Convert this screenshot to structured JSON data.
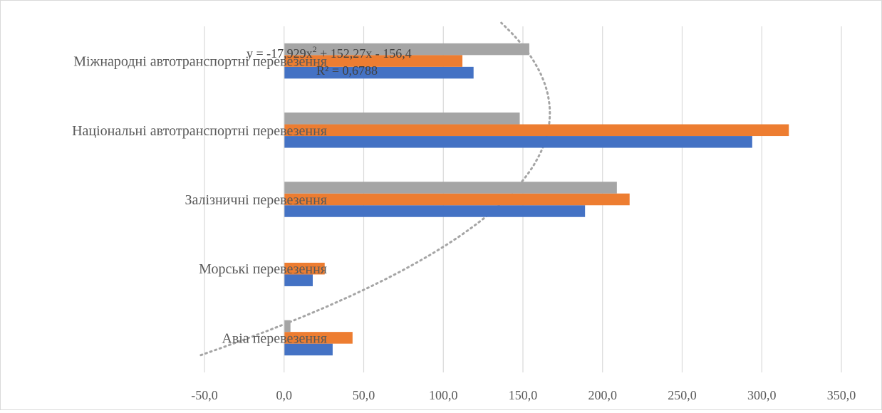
{
  "chart_data": {
    "type": "bar",
    "orientation": "horizontal",
    "categories": [
      "Авіа перевезення",
      "Морські перевезення",
      "Залізничні перевезення",
      "Національні  автотранспортні перевезення",
      "Міжнародні автотранспортні перевезення"
    ],
    "series": [
      {
        "values": [
          30.5,
          18,
          189,
          294,
          119
        ],
        "color": "#4472c4"
      },
      {
        "values": [
          43,
          25.5,
          217,
          317,
          112
        ],
        "color": "#ed7d31"
      },
      {
        "values": [
          4,
          0,
          209,
          148,
          154
        ],
        "color": "#a5a5a5"
      }
    ],
    "xlim": [
      -50,
      350
    ],
    "x_ticks": [
      "-50,0",
      "0,0",
      "50,0",
      "100,0",
      "150,0",
      "200,0",
      "250,0",
      "300,0",
      "350,0"
    ],
    "x_tick_values": [
      -50,
      0,
      50,
      100,
      150,
      200,
      250,
      300,
      350
    ],
    "grid": true,
    "trendline": {
      "type": "polynomial",
      "order": 2,
      "coefficients": [
        -17.929,
        152.27,
        -156.4
      ],
      "equation_line1_prefix": "y = -17,929x",
      "equation_line1_exp": "2",
      "equation_line1_suffix": " + 152,27x - 156,4",
      "equation_line2": "R² = 0,6788",
      "color": "#a5a5a5",
      "style": "dotted"
    }
  }
}
